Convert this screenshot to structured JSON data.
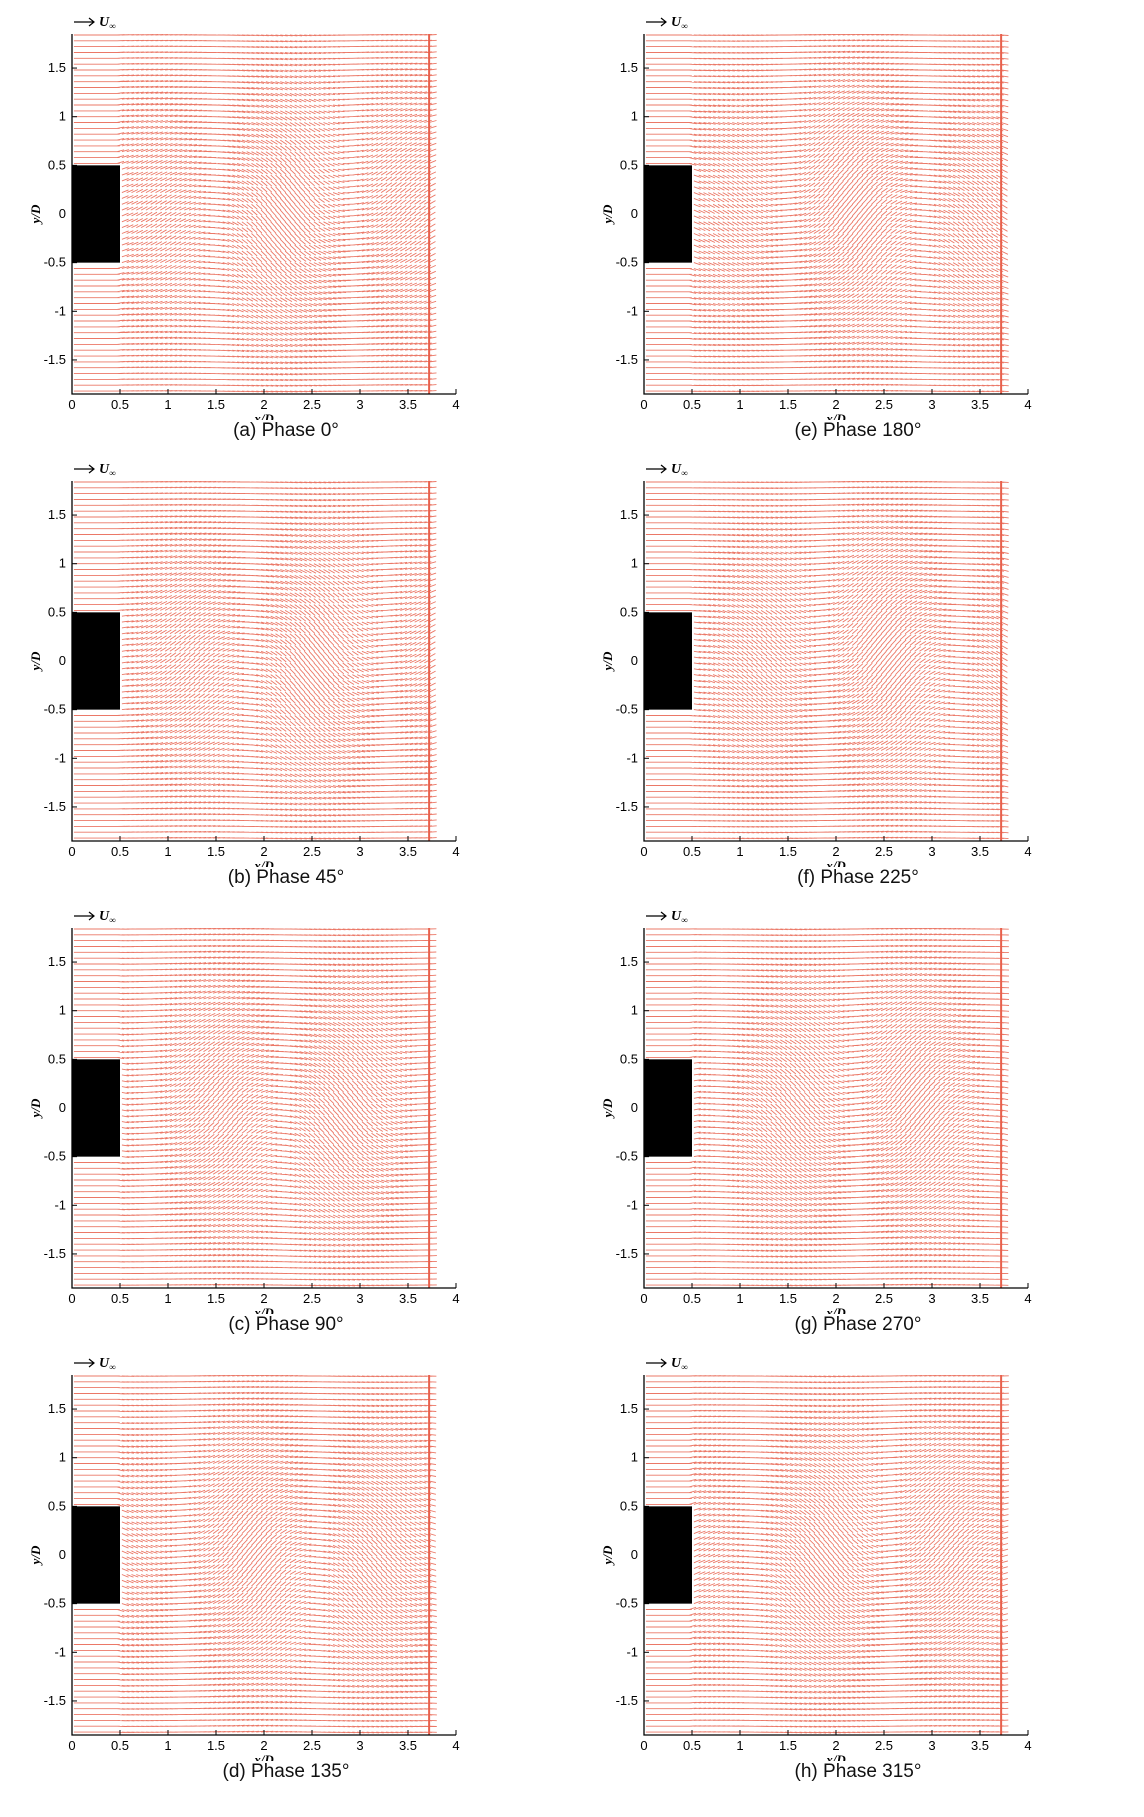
{
  "freestream_label": "U",
  "freestream_subscript": "∞",
  "xlabel": "x/D",
  "ylabel": "y/D",
  "chart_data": [
    {
      "type": "vector-field",
      "caption": "(a) Phase 0°",
      "xlabel": "x/D",
      "ylabel": "y/D",
      "xlim": [
        0,
        4
      ],
      "ylim": [
        -1.85,
        1.85
      ],
      "xticks": [
        "0",
        "0.5",
        "1",
        "1.5",
        "2",
        "2.5",
        "3",
        "3.5",
        "4"
      ],
      "yticks": [
        "-1.5",
        "-1",
        "-0.5",
        "0",
        "0.5",
        "1",
        "1.5"
      ],
      "obstacle": {
        "x": [
          0,
          0.5
        ],
        "y": [
          -0.5,
          0.5
        ]
      },
      "vector_color": "#e8604c"
    },
    {
      "type": "vector-field",
      "caption": "(b) Phase 45°",
      "xlabel": "x/D",
      "ylabel": "y/D",
      "xlim": [
        0,
        4
      ],
      "ylim": [
        -1.85,
        1.85
      ],
      "xticks": [
        "0",
        "0.5",
        "1",
        "1.5",
        "2",
        "2.5",
        "3",
        "3.5",
        "4"
      ],
      "yticks": [
        "-1.5",
        "-1",
        "-0.5",
        "0",
        "0.5",
        "1",
        "1.5"
      ],
      "obstacle": {
        "x": [
          0,
          0.5
        ],
        "y": [
          -0.5,
          0.5
        ]
      },
      "vector_color": "#e8604c"
    },
    {
      "type": "vector-field",
      "caption": "(c) Phase 90°",
      "xlabel": "x/D",
      "ylabel": "y/D",
      "xlim": [
        0,
        4
      ],
      "ylim": [
        -1.85,
        1.85
      ],
      "xticks": [
        "0",
        "0.5",
        "1",
        "1.5",
        "2",
        "2.5",
        "3",
        "3.5",
        "4"
      ],
      "yticks": [
        "-1.5",
        "-1",
        "-0.5",
        "0",
        "0.5",
        "1",
        "1.5"
      ],
      "obstacle": {
        "x": [
          0,
          0.5
        ],
        "y": [
          -0.5,
          0.5
        ]
      },
      "vector_color": "#e8604c"
    },
    {
      "type": "vector-field",
      "caption": "(d) Phase 135°",
      "xlabel": "x/D",
      "ylabel": "y/D",
      "xlim": [
        0,
        4
      ],
      "ylim": [
        -1.85,
        1.85
      ],
      "xticks": [
        "0",
        "0.5",
        "1",
        "1.5",
        "2",
        "2.5",
        "3",
        "3.5",
        "4"
      ],
      "yticks": [
        "-1.5",
        "-1",
        "-0.5",
        "0",
        "0.5",
        "1",
        "1.5"
      ],
      "obstacle": {
        "x": [
          0,
          0.5
        ],
        "y": [
          -0.5,
          0.5
        ]
      },
      "vector_color": "#e8604c"
    },
    {
      "type": "vector-field",
      "caption": "(e) Phase 180°",
      "xlabel": "x/D",
      "ylabel": "y/D",
      "xlim": [
        0,
        4
      ],
      "ylim": [
        -1.85,
        1.85
      ],
      "xticks": [
        "0",
        "0.5",
        "1",
        "1.5",
        "2",
        "2.5",
        "3",
        "3.5",
        "4"
      ],
      "yticks": [
        "-1.5",
        "-1",
        "-0.5",
        "0",
        "0.5",
        "1",
        "1.5"
      ],
      "obstacle": {
        "x": [
          0,
          0.5
        ],
        "y": [
          -0.5,
          0.5
        ]
      },
      "vector_color": "#e8604c"
    },
    {
      "type": "vector-field",
      "caption": "(f) Phase 225°",
      "xlabel": "x/D",
      "ylabel": "y/D",
      "xlim": [
        0,
        4
      ],
      "ylim": [
        -1.85,
        1.85
      ],
      "xticks": [
        "0",
        "0.5",
        "1",
        "1.5",
        "2",
        "2.5",
        "3",
        "3.5",
        "4"
      ],
      "yticks": [
        "-1.5",
        "-1",
        "-0.5",
        "0",
        "0.5",
        "1",
        "1.5"
      ],
      "obstacle": {
        "x": [
          0,
          0.5
        ],
        "y": [
          -0.5,
          0.5
        ]
      },
      "vector_color": "#e8604c"
    },
    {
      "type": "vector-field",
      "caption": "(g) Phase 270°",
      "xlabel": "x/D",
      "ylabel": "y/D",
      "xlim": [
        0,
        4
      ],
      "ylim": [
        -1.85,
        1.85
      ],
      "xticks": [
        "0",
        "0.5",
        "1",
        "1.5",
        "2",
        "2.5",
        "3",
        "3.5",
        "4"
      ],
      "yticks": [
        "-1.5",
        "-1",
        "-0.5",
        "0",
        "0.5",
        "1",
        "1.5"
      ],
      "obstacle": {
        "x": [
          0,
          0.5
        ],
        "y": [
          -0.5,
          0.5
        ]
      },
      "vector_color": "#e8604c"
    },
    {
      "type": "vector-field",
      "caption": "(h) Phase 315°",
      "xlabel": "x/D",
      "ylabel": "y/D",
      "xlim": [
        0,
        4
      ],
      "ylim": [
        -1.85,
        1.85
      ],
      "xticks": [
        "0",
        "0.5",
        "1",
        "1.5",
        "2",
        "2.5",
        "3",
        "3.5",
        "4"
      ],
      "yticks": [
        "-1.5",
        "-1",
        "-0.5",
        "0",
        "0.5",
        "1",
        "1.5"
      ],
      "obstacle": {
        "x": [
          0,
          0.5
        ],
        "y": [
          -0.5,
          0.5
        ]
      },
      "vector_color": "#e8604c"
    }
  ]
}
